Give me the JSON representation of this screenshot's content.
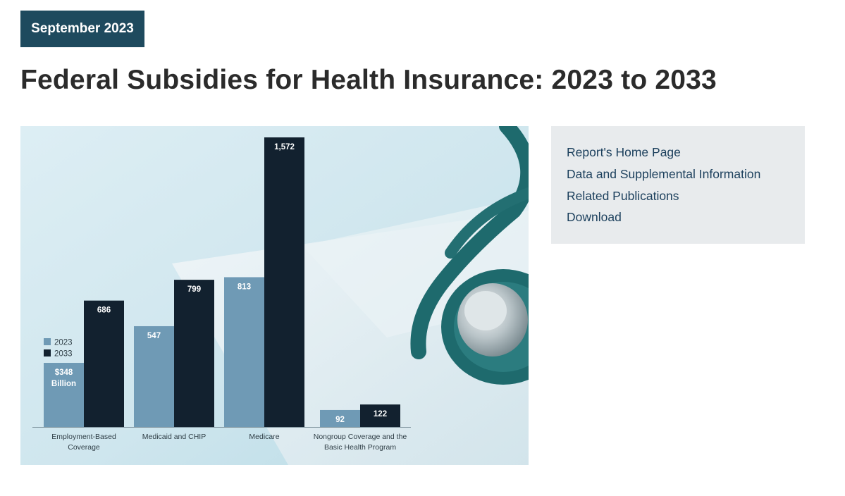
{
  "badge": {
    "date": "September 2023"
  },
  "header": {
    "title": "Federal Subsidies for Health Insurance: 2023 to 2033"
  },
  "links": [
    {
      "label": "Report's Home Page"
    },
    {
      "label": "Data and Supplemental Information"
    },
    {
      "label": "Related Publications"
    },
    {
      "label": "Download"
    }
  ],
  "colors": {
    "badge_bg": "#1e4a5e",
    "bar_2023": "#6f9ab5",
    "bar_2033": "#12212f",
    "link": "#1b3f5c",
    "stethoscope": "#1e6a6d"
  },
  "chart_data": {
    "type": "bar",
    "title": "",
    "xlabel": "",
    "ylabel": "",
    "unit_note": "$348 Billion",
    "ylim": [
      0,
      1572
    ],
    "categories": [
      [
        "Employment-Based",
        "Coverage"
      ],
      [
        "Medicaid and CHIP"
      ],
      [
        "Medicare"
      ],
      [
        "Nongroup Coverage and the",
        "Basic Health Program"
      ]
    ],
    "series": [
      {
        "name": "2023",
        "values": [
          348,
          547,
          813,
          92
        ],
        "labels": [
          "$348",
          "547",
          "813",
          "92"
        ]
      },
      {
        "name": "2033",
        "values": [
          686,
          799,
          1572,
          122
        ],
        "labels": [
          "686",
          "799",
          "1,572",
          "122"
        ]
      }
    ],
    "first_label_suffix": "Billion",
    "legend": "left"
  }
}
